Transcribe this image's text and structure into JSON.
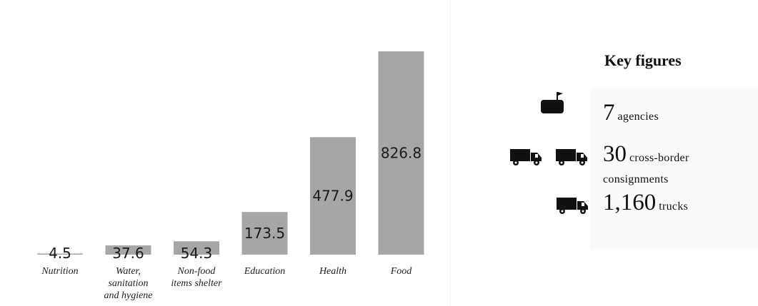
{
  "chart_data": {
    "type": "bar",
    "categories": [
      "Nutrition",
      "Water, sanitation and hygiene",
      "Non-food items shelter",
      "Education",
      "Health",
      "Food"
    ],
    "category_lines": [
      [
        "Nutrition"
      ],
      [
        "Water,",
        "sanitation",
        "and hygiene"
      ],
      [
        "Non-food",
        "items shelter"
      ],
      [
        "Education"
      ],
      [
        "Health"
      ],
      [
        "Food"
      ]
    ],
    "values": [
      4.5,
      37.6,
      54.3,
      173.5,
      477.9,
      826.8
    ],
    "value_labels": [
      "4.5",
      "37.6",
      "54.3",
      "173.5",
      "477.9",
      "826.8"
    ],
    "bar_color": "#a6a6a6",
    "ylim": [
      0,
      826.8
    ]
  },
  "key_figures": {
    "title": "Key figures",
    "agencies": {
      "number": "7",
      "text": "agencies",
      "icon": "agency-icon"
    },
    "consignments": {
      "number": "30",
      "text": "cross-border",
      "text_line2": "consignments",
      "icon": "truck-icon"
    },
    "trucks": {
      "number": "1,160",
      "text": "trucks",
      "icon": "truck-icon"
    }
  }
}
